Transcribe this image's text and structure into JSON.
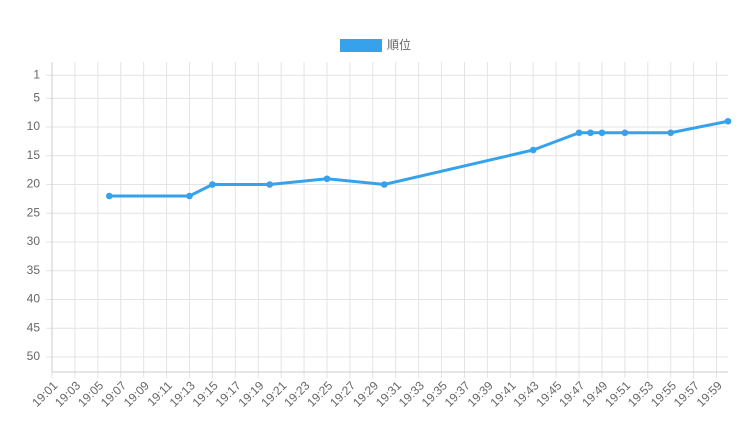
{
  "chart_data": {
    "type": "line",
    "x": [
      "19:06",
      "19:13",
      "19:15",
      "19:20",
      "19:25",
      "19:30",
      "19:43",
      "19:47",
      "19:48",
      "19:49",
      "19:51",
      "19:55",
      "20:00"
    ],
    "series": [
      {
        "name": "順位",
        "color": "#36a2eb",
        "values": [
          22,
          22,
          20,
          20,
          19,
          20,
          14,
          11,
          11,
          11,
          11,
          11,
          9
        ]
      }
    ],
    "xlim": [
      "19:01",
      "20:00"
    ],
    "xticks": [
      "19:01",
      "19:03",
      "19:05",
      "19:07",
      "19:09",
      "19:11",
      "19:13",
      "19:15",
      "19:17",
      "19:19",
      "19:21",
      "19:23",
      "19:25",
      "19:27",
      "19:29",
      "19:31",
      "19:33",
      "19:35",
      "19:37",
      "19:39",
      "19:41",
      "19:43",
      "19:45",
      "19:47",
      "19:49",
      "19:51",
      "19:53",
      "19:55",
      "19:57",
      "19:59"
    ],
    "ylim": [
      -1.3,
      52.6
    ],
    "y_reversed": true,
    "yticks": [
      1,
      5,
      10,
      15,
      20,
      25,
      30,
      35,
      40,
      45,
      50
    ],
    "grid": true,
    "legend": "top"
  }
}
